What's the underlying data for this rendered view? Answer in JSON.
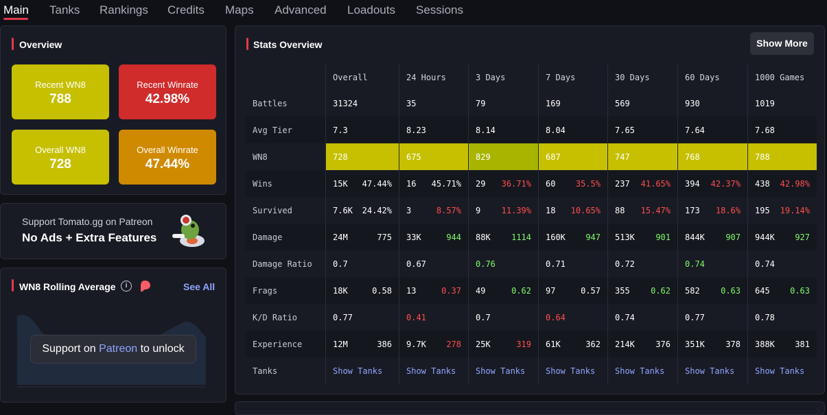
{
  "nav": {
    "tabs": [
      "Main",
      "Tanks",
      "Rankings",
      "Credits",
      "Maps",
      "Advanced",
      "Loadouts",
      "Sessions"
    ],
    "active": "Main"
  },
  "overview": {
    "title": "Overview",
    "tiles": [
      {
        "label": "Recent WN8",
        "value": "788",
        "color": "#c6c000"
      },
      {
        "label": "Recent Winrate",
        "value": "42.98%",
        "color": "#d02c2c"
      },
      {
        "label": "Overall WN8",
        "value": "728",
        "color": "#c6c000"
      },
      {
        "label": "Overall Winrate",
        "value": "47.44%",
        "color": "#cf8a00"
      }
    ]
  },
  "support": {
    "line": "Support Tomato.gg on Patreon",
    "strong": "No Ads + Extra Features"
  },
  "rolling": {
    "title": "WN8 Rolling Average",
    "see_all": "See All",
    "unlock_prefix": "Support on ",
    "unlock_link": "Patreon",
    "unlock_suffix": " to unlock"
  },
  "stats": {
    "title": "Stats Overview",
    "show_more": "Show More",
    "columns": [
      "Overall",
      "24 Hours",
      "3 Days",
      "7 Days",
      "30 Days",
      "60 Days",
      "1000 Games"
    ],
    "rows": [
      {
        "label": "Battles",
        "cells": [
          {
            "a": "31324"
          },
          {
            "a": "35"
          },
          {
            "a": "79"
          },
          {
            "a": "169"
          },
          {
            "a": "569"
          },
          {
            "a": "930"
          },
          {
            "a": "1019"
          }
        ]
      },
      {
        "label": "Avg Tier",
        "cells": [
          {
            "a": "7.3"
          },
          {
            "a": "8.23"
          },
          {
            "a": "8.14"
          },
          {
            "a": "8.04"
          },
          {
            "a": "7.65"
          },
          {
            "a": "7.64"
          },
          {
            "a": "7.68"
          }
        ]
      },
      {
        "label": "WN8",
        "wn8": true,
        "cells": [
          {
            "a": "728"
          },
          {
            "a": "675"
          },
          {
            "a": "829",
            "green": true
          },
          {
            "a": "687"
          },
          {
            "a": "747"
          },
          {
            "a": "768"
          },
          {
            "a": "788"
          }
        ]
      },
      {
        "label": "Wins",
        "cells": [
          {
            "a": "15K",
            "b": "47.44%"
          },
          {
            "a": "16",
            "b": "45.71%"
          },
          {
            "a": "29",
            "b": "36.71%",
            "bc": "neg"
          },
          {
            "a": "60",
            "b": "35.5%",
            "bc": "neg"
          },
          {
            "a": "237",
            "b": "41.65%",
            "bc": "neg"
          },
          {
            "a": "394",
            "b": "42.37%",
            "bc": "neg"
          },
          {
            "a": "438",
            "b": "42.98%",
            "bc": "neg"
          }
        ]
      },
      {
        "label": "Survived",
        "cells": [
          {
            "a": "7.6K",
            "b": "24.42%"
          },
          {
            "a": "3",
            "b": "8.57%",
            "bc": "neg"
          },
          {
            "a": "9",
            "b": "11.39%",
            "bc": "neg"
          },
          {
            "a": "18",
            "b": "10.65%",
            "bc": "neg"
          },
          {
            "a": "88",
            "b": "15.47%",
            "bc": "neg"
          },
          {
            "a": "173",
            "b": "18.6%",
            "bc": "neg"
          },
          {
            "a": "195",
            "b": "19.14%",
            "bc": "neg"
          }
        ]
      },
      {
        "label": "Damage",
        "cells": [
          {
            "a": "24M",
            "b": "775"
          },
          {
            "a": "33K",
            "b": "944",
            "bc": "pos"
          },
          {
            "a": "88K",
            "b": "1114",
            "bc": "pos"
          },
          {
            "a": "160K",
            "b": "947",
            "bc": "pos"
          },
          {
            "a": "513K",
            "b": "901",
            "bc": "pos"
          },
          {
            "a": "844K",
            "b": "907",
            "bc": "pos"
          },
          {
            "a": "944K",
            "b": "927",
            "bc": "pos"
          }
        ]
      },
      {
        "label": "Damage Ratio",
        "cells": [
          {
            "a": "0.7"
          },
          {
            "a": "0.67"
          },
          {
            "a": "0.76",
            "ac": "pos"
          },
          {
            "a": "0.71"
          },
          {
            "a": "0.72"
          },
          {
            "a": "0.74",
            "ac": "pos"
          },
          {
            "a": "0.74"
          }
        ]
      },
      {
        "label": "Frags",
        "cells": [
          {
            "a": "18K",
            "b": "0.58"
          },
          {
            "a": "13",
            "b": "0.37",
            "bc": "neg"
          },
          {
            "a": "49",
            "b": "0.62",
            "bc": "pos"
          },
          {
            "a": "97",
            "b": "0.57"
          },
          {
            "a": "355",
            "b": "0.62",
            "bc": "pos"
          },
          {
            "a": "582",
            "b": "0.63",
            "bc": "pos"
          },
          {
            "a": "645",
            "b": "0.63",
            "bc": "pos"
          }
        ]
      },
      {
        "label": "K/D Ratio",
        "cells": [
          {
            "a": "0.77"
          },
          {
            "a": "0.41",
            "ac": "neg"
          },
          {
            "a": "0.7"
          },
          {
            "a": "0.64",
            "ac": "neg"
          },
          {
            "a": "0.74"
          },
          {
            "a": "0.77"
          },
          {
            "a": "0.78"
          }
        ]
      },
      {
        "label": "Experience",
        "cells": [
          {
            "a": "12M",
            "b": "386"
          },
          {
            "a": "9.7K",
            "b": "278",
            "bc": "neg"
          },
          {
            "a": "25K",
            "b": "319",
            "bc": "neg"
          },
          {
            "a": "61K",
            "b": "362"
          },
          {
            "a": "214K",
            "b": "376"
          },
          {
            "a": "351K",
            "b": "378"
          },
          {
            "a": "388K",
            "b": "381"
          }
        ]
      },
      {
        "label": "Tanks",
        "link": true,
        "cells": [
          {
            "a": "Show Tanks"
          },
          {
            "a": "Show Tanks"
          },
          {
            "a": "Show Tanks"
          },
          {
            "a": "Show Tanks"
          },
          {
            "a": "Show Tanks"
          },
          {
            "a": "Show Tanks"
          },
          {
            "a": "Show Tanks"
          }
        ]
      }
    ]
  }
}
